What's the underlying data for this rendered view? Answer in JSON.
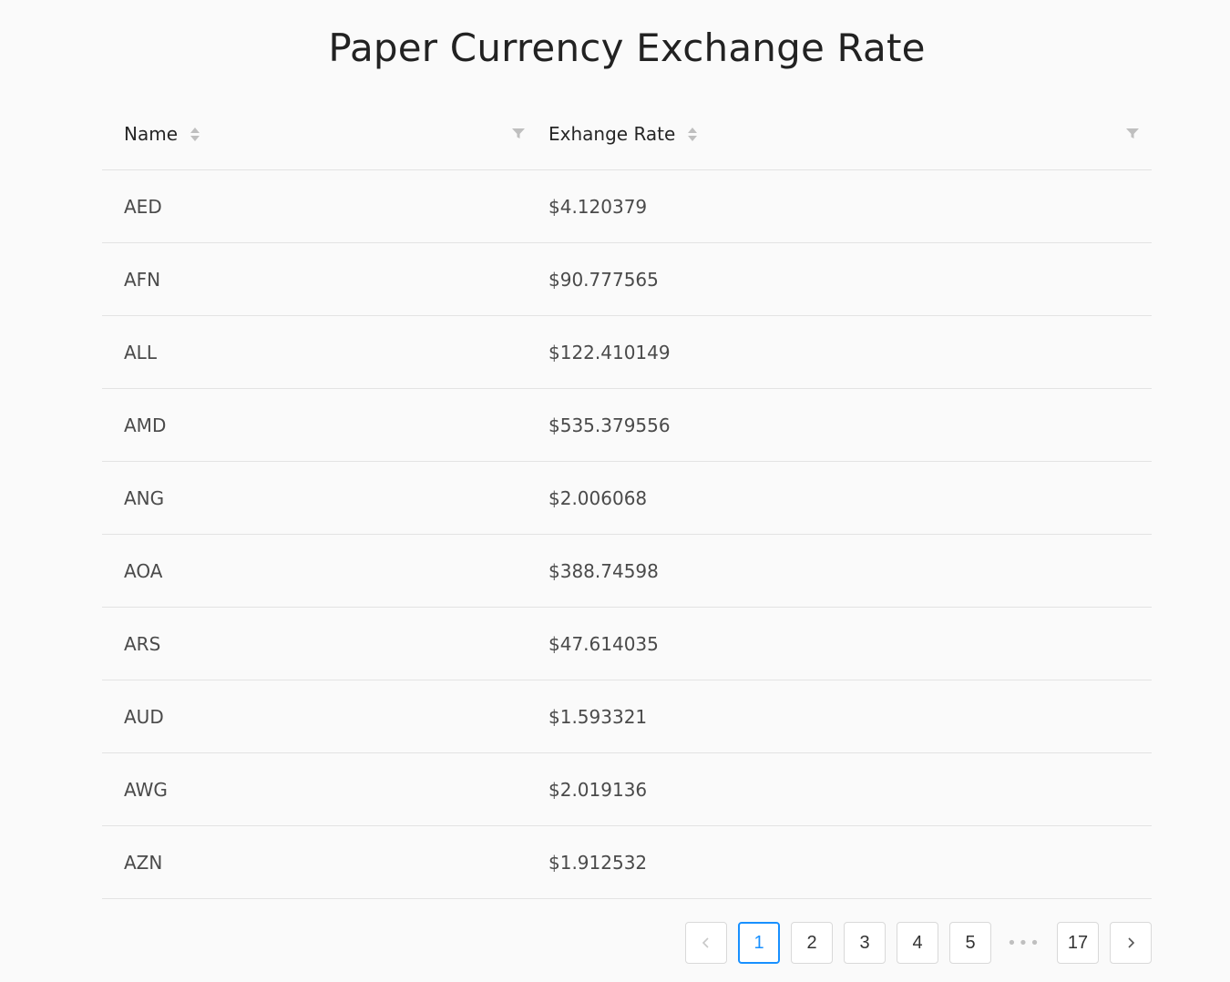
{
  "title": "Paper Currency Exchange Rate",
  "columns": {
    "name": "Name",
    "rate": "Exhange Rate"
  },
  "rows": [
    {
      "name": "AED",
      "rate": "$4.120379"
    },
    {
      "name": "AFN",
      "rate": "$90.777565"
    },
    {
      "name": "ALL",
      "rate": "$122.410149"
    },
    {
      "name": "AMD",
      "rate": "$535.379556"
    },
    {
      "name": "ANG",
      "rate": "$2.006068"
    },
    {
      "name": "AOA",
      "rate": "$388.74598"
    },
    {
      "name": "ARS",
      "rate": "$47.614035"
    },
    {
      "name": "AUD",
      "rate": "$1.593321"
    },
    {
      "name": "AWG",
      "rate": "$2.019136"
    },
    {
      "name": "AZN",
      "rate": "$1.912532"
    }
  ],
  "pagination": {
    "prev": "<",
    "pages": [
      "1",
      "2",
      "3",
      "4",
      "5"
    ],
    "ellipsis": "•••",
    "last": "17",
    "next": ">",
    "current": "1"
  },
  "icons": {
    "sort": "sort-icon",
    "filter": "filter-icon"
  },
  "colors": {
    "accent": "#1890ff",
    "border": "#e3e3e3",
    "background": "#fafafa"
  }
}
